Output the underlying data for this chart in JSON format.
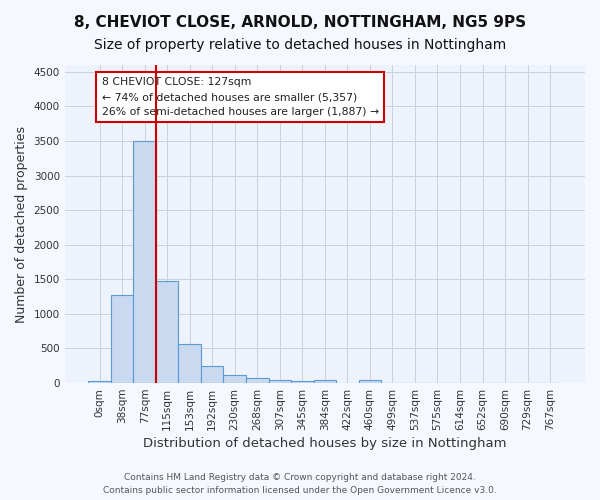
{
  "title_line1": "8, CHEVIOT CLOSE, ARNOLD, NOTTINGHAM, NG5 9PS",
  "title_line2": "Size of property relative to detached houses in Nottingham",
  "xlabel": "Distribution of detached houses by size in Nottingham",
  "ylabel": "Number of detached properties",
  "footer_line1": "Contains HM Land Registry data © Crown copyright and database right 2024.",
  "footer_line2": "Contains public sector information licensed under the Open Government Licence v3.0.",
  "bin_labels": [
    "0sqm",
    "38sqm",
    "77sqm",
    "115sqm",
    "153sqm",
    "192sqm",
    "230sqm",
    "268sqm",
    "307sqm",
    "345sqm",
    "384sqm",
    "422sqm",
    "460sqm",
    "499sqm",
    "537sqm",
    "575sqm",
    "614sqm",
    "652sqm",
    "690sqm",
    "729sqm",
    "767sqm"
  ],
  "bar_values": [
    30,
    1270,
    3500,
    1480,
    570,
    240,
    120,
    75,
    40,
    25,
    40,
    0,
    50,
    0,
    0,
    0,
    0,
    0,
    0,
    0,
    0
  ],
  "bar_color": "#c9d9f0",
  "bar_edge_color": "#5b9bd5",
  "vline_color": "#cc0000",
  "annotation_box_text": "8 CHEVIOT CLOSE: 127sqm\n← 74% of detached houses are smaller (5,357)\n26% of semi-detached houses are larger (1,887) →",
  "ylim": [
    0,
    4600
  ],
  "background_color": "#eef2fb",
  "grid_color": "#c8d0e0",
  "title_fontsize": 11,
  "subtitle_fontsize": 10,
  "axis_label_fontsize": 9,
  "tick_fontsize": 7.5
}
